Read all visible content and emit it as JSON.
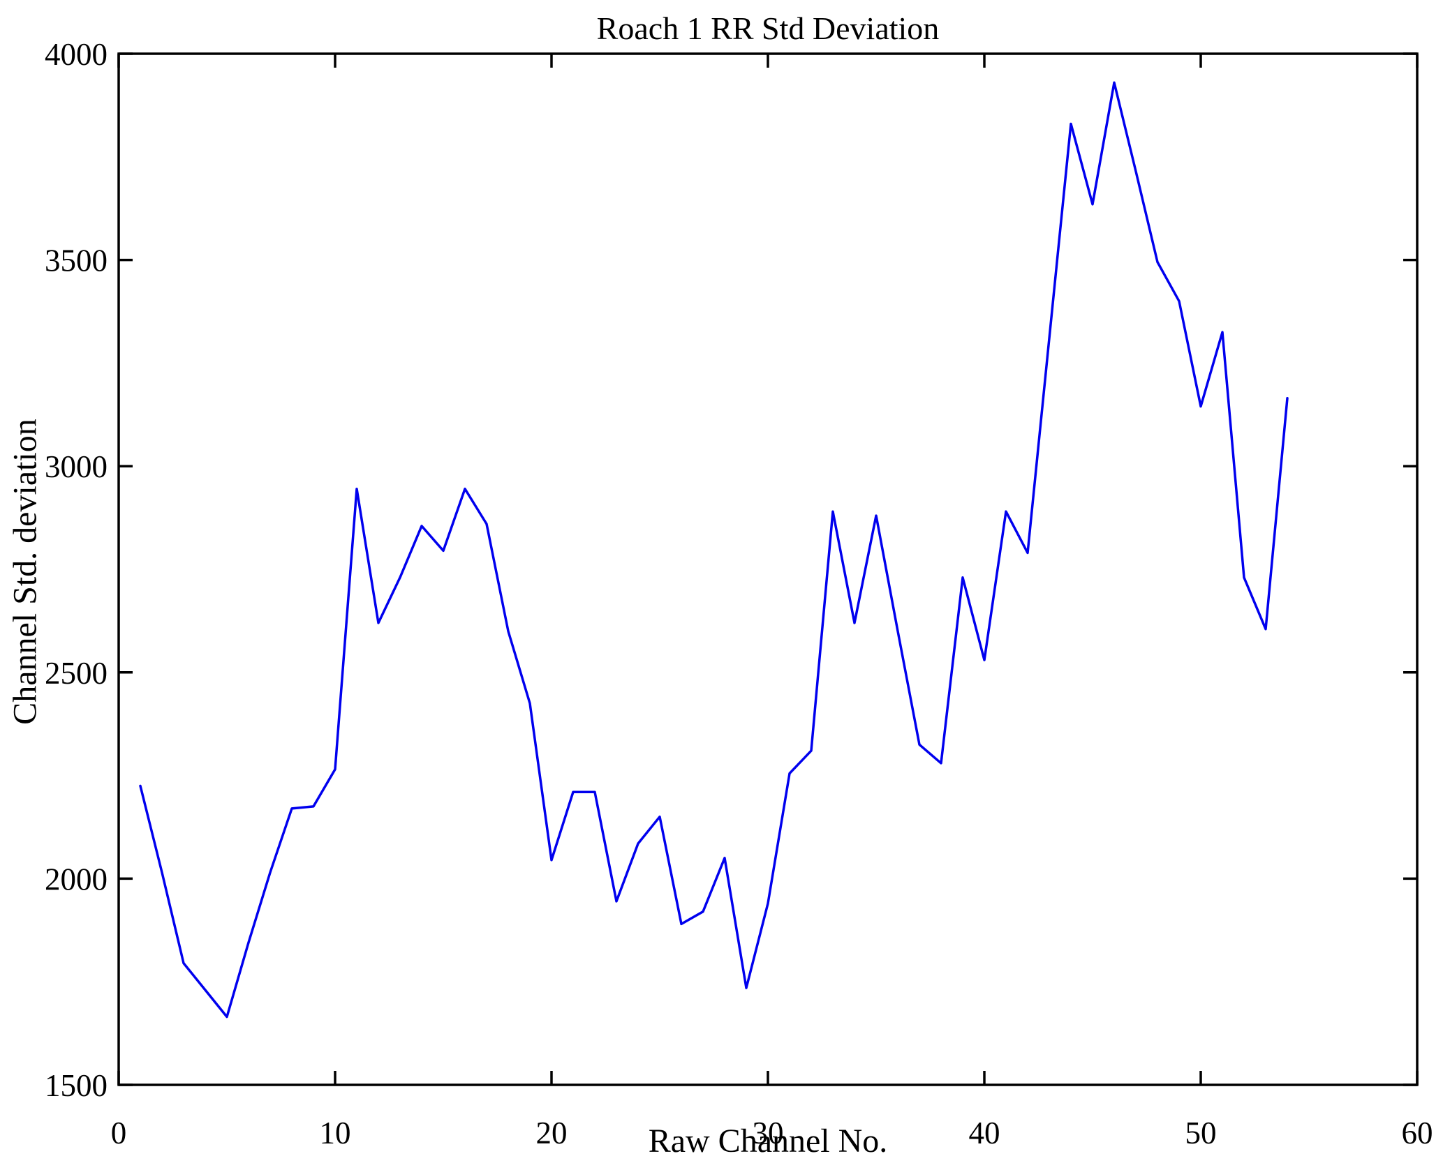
{
  "chart": {
    "title": "Roach 1 RR Std Deviation",
    "xlabel": "Raw Channel No.",
    "ylabel": "Channel Std. deviation"
  },
  "chart_data": {
    "type": "line",
    "title": "Roach 1 RR Std Deviation",
    "xlabel": "Raw Channel No.",
    "ylabel": "Channel Std. deviation",
    "xlim": [
      0,
      60
    ],
    "ylim": [
      1500,
      4000
    ],
    "xticks": [
      0,
      10,
      20,
      30,
      40,
      50,
      60
    ],
    "yticks": [
      1500,
      2000,
      2500,
      3000,
      3500,
      4000
    ],
    "grid": false,
    "legend": false,
    "line_color": "#0000ee",
    "axis_color": "#000000",
    "x": [
      1,
      2,
      3,
      4,
      5,
      6,
      7,
      8,
      9,
      10,
      11,
      12,
      13,
      14,
      15,
      16,
      17,
      18,
      19,
      20,
      21,
      22,
      23,
      24,
      25,
      26,
      27,
      28,
      29,
      30,
      31,
      32,
      33,
      34,
      35,
      36,
      37,
      38,
      39,
      40,
      41,
      42,
      43,
      44,
      45,
      46,
      47,
      48,
      49,
      50,
      51,
      52,
      53,
      54
    ],
    "y": [
      2225,
      2015,
      1795,
      1730,
      1665,
      1845,
      2015,
      2170,
      2175,
      2265,
      2945,
      2620,
      2730,
      2855,
      2795,
      2945,
      2860,
      2600,
      2425,
      2045,
      2210,
      2210,
      1945,
      2085,
      2150,
      1890,
      1920,
      2050,
      1735,
      1940,
      2255,
      2310,
      2890,
      2620,
      2880,
      2600,
      2325,
      2280,
      2730,
      2530,
      2890,
      2790,
      3310,
      3830,
      3635,
      3930,
      3715,
      3495,
      3400,
      3145,
      3325,
      2730,
      2605,
      3165
    ]
  }
}
